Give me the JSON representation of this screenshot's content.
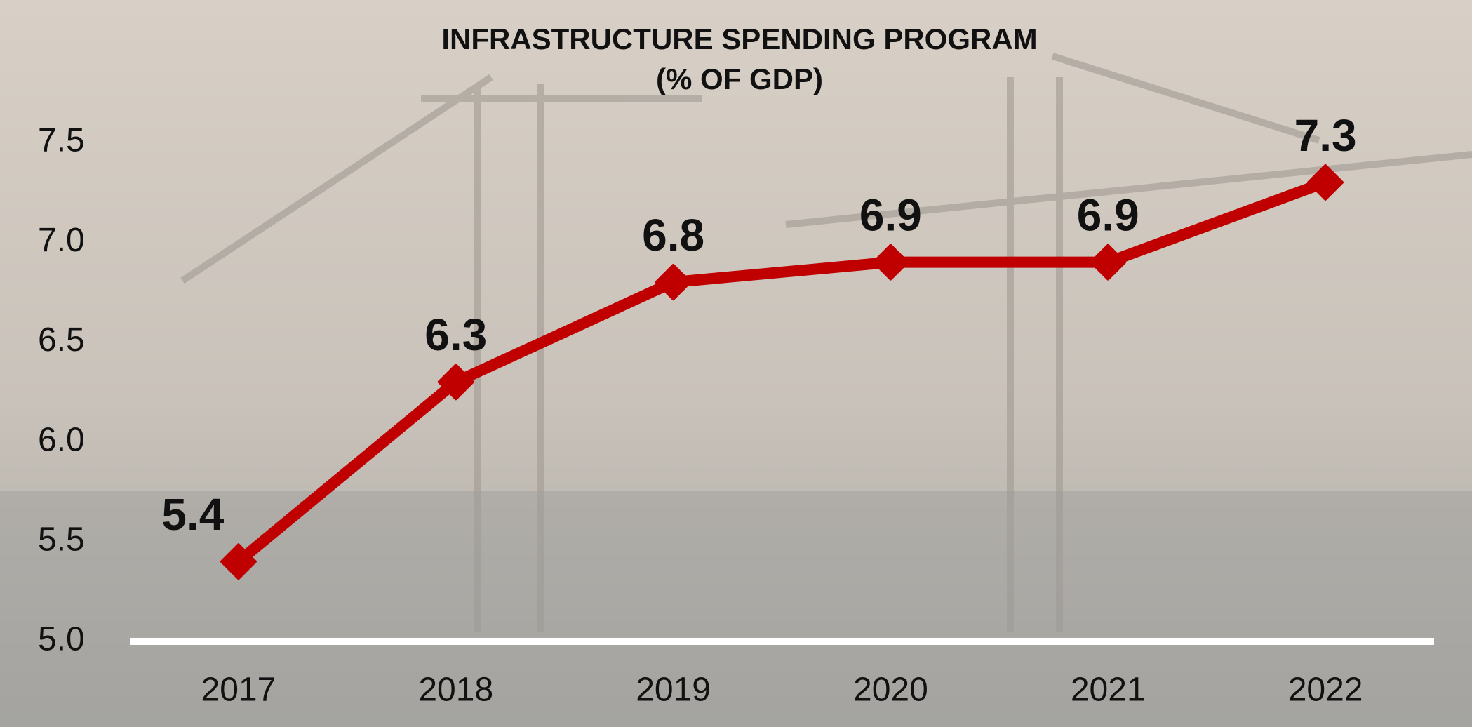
{
  "chart_data": {
    "type": "line",
    "title": "INFRASTRUCTURE SPENDING PROGRAM",
    "subtitle": "(% OF GDP)",
    "categories": [
      "2017",
      "2018",
      "2019",
      "2020",
      "2021",
      "2022"
    ],
    "values": [
      5.4,
      6.3,
      6.8,
      6.9,
      6.9,
      7.3
    ],
    "color": "#c00000",
    "ylim": [
      5,
      7.5
    ],
    "yticks": [
      {
        "value": 5,
        "label": "5.0"
      },
      5.5,
      {
        "value": 6,
        "label": "6.0"
      },
      6.5,
      {
        "value": 7,
        "label": "7.0"
      },
      7.5
    ],
    "grid": false
  }
}
